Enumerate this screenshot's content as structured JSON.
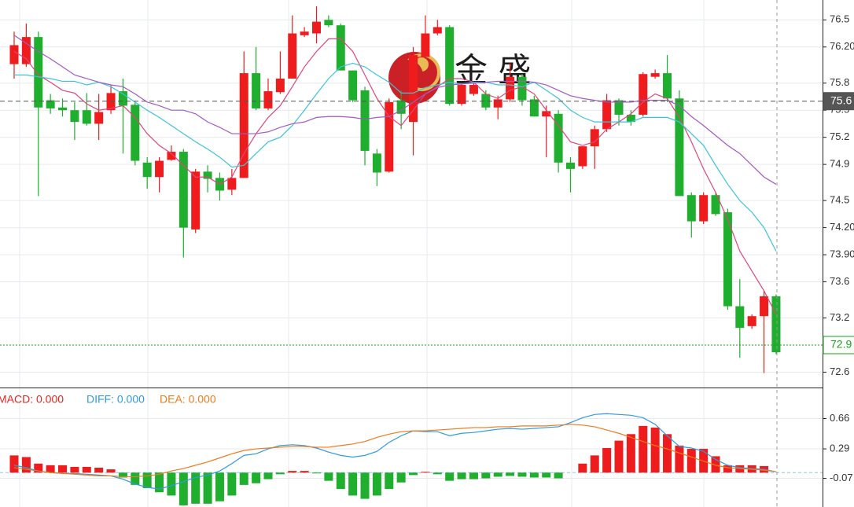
{
  "chart_data": [
    {
      "type": "candlestick",
      "logo": "金 盛",
      "up_color": "#ee1c1c",
      "down_color": "#1fae2d",
      "open": [
        76.01,
        76.01,
        76.31,
        75.61,
        75.53,
        75.5,
        75.5,
        75.35,
        75.5,
        75.71,
        75.56,
        74.92,
        74.76,
        74.95,
        75.04,
        74.18,
        74.82,
        74.75,
        74.62,
        74.75,
        75.91,
        75.52,
        75.7,
        75.85,
        76.33,
        76.35,
        76.5,
        76.44,
        75.94,
        75.72,
        75.02,
        74.82,
        75.61,
        75.37,
        76.09,
        76.35,
        76.42,
        75.57,
        75.68,
        75.68,
        75.53,
        75.62,
        75.87,
        75.62,
        75.43,
        75.46,
        74.92,
        74.88,
        75.1,
        75.29,
        75.61,
        75.45,
        75.45,
        75.87,
        75.91,
        75.63,
        74.56,
        74.27,
        74.56,
        74.37,
        73.33,
        73.11,
        73.22,
        73.44
      ],
      "high": [
        76.37,
        76.46,
        76.37,
        75.68,
        75.63,
        75.59,
        75.69,
        75.68,
        75.78,
        75.85,
        75.59,
        74.98,
        74.98,
        75.11,
        75.07,
        74.85,
        74.89,
        74.81,
        74.85,
        76.15,
        76.2,
        75.85,
        76.15,
        76.55,
        76.42,
        76.65,
        76.55,
        76.46,
        75.94,
        75.76,
        75.07,
        75.63,
        75.72,
        76.2,
        76.55,
        76.5,
        76.44,
        75.8,
        75.8,
        75.72,
        75.66,
        76.02,
        75.9,
        75.66,
        75.55,
        75.5,
        74.98,
        75.1,
        75.33,
        75.68,
        75.63,
        75.5,
        75.92,
        75.95,
        76.11,
        75.72,
        74.59,
        74.59,
        74.59,
        74.41,
        73.63,
        73.24,
        73.5,
        73.46
      ],
      "low": [
        75.85,
        75.98,
        74.55,
        75.46,
        75.43,
        75.17,
        75.33,
        75.17,
        75.46,
        75.02,
        74.89,
        74.63,
        74.59,
        74.94,
        73.87,
        74.14,
        74.59,
        74.5,
        74.56,
        74.75,
        75.5,
        75.5,
        75.68,
        75.85,
        76.31,
        76.24,
        76.42,
        75.94,
        75.59,
        74.89,
        74.66,
        74.81,
        75.29,
        75.0,
        76.07,
        76.33,
        75.55,
        75.55,
        75.66,
        75.5,
        75.4,
        75.59,
        75.55,
        75.43,
        74.98,
        74.81,
        74.59,
        74.85,
        74.85,
        75.26,
        75.33,
        75.33,
        75.43,
        75.85,
        75.59,
        74.55,
        74.09,
        74.24,
        74.33,
        73.29,
        72.76,
        73.08,
        72.59,
        72.8
      ],
      "close": [
        76.22,
        76.31,
        75.53,
        75.52,
        75.5,
        75.37,
        75.35,
        75.48,
        75.69,
        75.55,
        74.94,
        74.76,
        74.94,
        75.04,
        74.2,
        74.82,
        74.74,
        74.61,
        74.75,
        75.91,
        75.52,
        75.71,
        75.85,
        76.35,
        76.37,
        76.48,
        76.44,
        75.94,
        75.61,
        75.05,
        74.81,
        75.59,
        75.46,
        76.11,
        76.35,
        76.42,
        75.57,
        75.78,
        75.78,
        75.53,
        75.62,
        75.87,
        75.61,
        75.43,
        75.49,
        74.92,
        74.85,
        75.1,
        75.29,
        75.61,
        75.45,
        75.37,
        75.9,
        75.91,
        75.63,
        74.55,
        74.27,
        74.56,
        74.35,
        73.33,
        73.09,
        73.22,
        73.44,
        72.82
      ],
      "lines": [
        {
          "color": "#e0457b",
          "values": [
            76.15,
            76.07,
            75.89,
            75.81,
            75.72,
            75.69,
            75.57,
            75.5,
            75.52,
            75.55,
            75.42,
            75.24,
            75.11,
            75.02,
            74.89,
            74.76,
            74.76,
            74.68,
            74.76,
            75.02,
            75.24,
            75.42,
            75.55,
            75.76,
            75.98,
            76.15,
            76.29,
            76.29,
            76.15,
            75.89,
            75.63,
            75.43,
            75.33,
            75.5,
            75.68,
            75.76,
            75.85,
            75.85,
            75.81,
            75.68,
            75.63,
            75.72,
            75.76,
            75.68,
            75.5,
            75.33,
            75.15,
            75.11,
            75.15,
            75.29,
            75.37,
            75.46,
            75.59,
            75.68,
            75.63,
            75.42,
            75.15,
            74.85,
            74.59,
            74.29,
            73.94,
            73.72,
            73.5,
            73.24
          ]
        },
        {
          "color": "#3cc3d8",
          "values": [
            75.89,
            75.89,
            75.87,
            75.85,
            75.82,
            75.82,
            75.78,
            75.81,
            75.76,
            75.68,
            75.59,
            75.5,
            75.42,
            75.33,
            75.24,
            75.15,
            75.07,
            74.98,
            74.87,
            74.89,
            75.02,
            75.15,
            75.2,
            75.33,
            75.5,
            75.68,
            75.85,
            75.98,
            76.02,
            75.98,
            75.89,
            75.81,
            75.69,
            75.69,
            75.75,
            75.78,
            75.81,
            75.79,
            75.81,
            75.81,
            75.78,
            75.78,
            75.76,
            75.81,
            75.72,
            75.63,
            75.5,
            75.42,
            75.37,
            75.37,
            75.37,
            75.37,
            75.42,
            75.42,
            75.42,
            75.37,
            75.24,
            75.11,
            74.89,
            74.68,
            74.5,
            74.37,
            74.2,
            73.94
          ]
        },
        {
          "color": "#a259c4",
          "values": [
            76.33,
            76.24,
            76.15,
            76.07,
            75.98,
            75.89,
            75.85,
            75.81,
            75.78,
            75.76,
            75.68,
            75.59,
            75.55,
            75.5,
            75.5,
            75.46,
            75.37,
            75.31,
            75.24,
            75.24,
            75.24,
            75.26,
            75.31,
            75.35,
            75.37,
            75.42,
            75.43,
            75.43,
            75.42,
            75.4,
            75.42,
            75.43,
            75.5,
            75.59,
            75.68,
            75.75,
            75.78,
            75.79,
            75.8,
            75.81,
            75.82,
            75.82,
            75.82,
            75.81,
            75.78,
            75.72,
            75.66,
            75.63,
            75.61,
            75.59,
            75.59,
            75.59,
            75.61,
            75.61,
            75.61,
            75.55,
            75.43,
            75.33,
            75.22,
            75.11,
            75.02,
            74.89,
            74.76,
            74.68
          ]
        }
      ],
      "price_lines": [
        {
          "value": 75.6,
          "color": "#555555",
          "style": "dashed",
          "tag": "filled"
        },
        {
          "value": 72.9,
          "color": "#1aa31a",
          "style": "dotted",
          "tag": "outline"
        }
      ],
      "ylim": [
        72.43,
        76.72
      ],
      "yticks": [
        76.5,
        {
          "value": 76.2,
          "label": "76.20"
        },
        75.8,
        75.5,
        75.2,
        74.9,
        74.5,
        {
          "value": 74.2,
          "label": "74.20"
        },
        {
          "value": 73.9,
          "label": "73.90"
        },
        73.6,
        73.2,
        72.6
      ],
      "grid": true
    },
    {
      "type": "macd",
      "legend": [
        {
          "text": "MACD: 0.000",
          "color": "#e8231c"
        },
        {
          "text": "DIFF: 0.000",
          "color": "#2f9be0"
        },
        {
          "text": "DEA: 0.000",
          "color": "#f07a1e"
        }
      ],
      "up_color": "#ee1c1c",
      "down_color": "#1fae2d",
      "histogram": [
        0.21,
        0.19,
        0.11,
        0.09,
        0.09,
        0.07,
        0.07,
        0.06,
        0.04,
        -0.06,
        -0.15,
        -0.19,
        -0.24,
        -0.28,
        -0.4,
        -0.38,
        -0.38,
        -0.35,
        -0.28,
        -0.15,
        -0.13,
        -0.08,
        -0.02,
        0.02,
        0.02,
        -0.01,
        -0.1,
        -0.2,
        -0.28,
        -0.32,
        -0.28,
        -0.2,
        -0.12,
        -0.03,
        0.01,
        -0.02,
        -0.1,
        -0.08,
        -0.08,
        -0.07,
        -0.05,
        -0.04,
        -0.05,
        -0.06,
        -0.06,
        -0.07,
        0.0,
        0.11,
        0.21,
        0.3,
        0.39,
        0.47,
        0.57,
        0.55,
        0.47,
        0.33,
        0.29,
        0.29,
        0.2,
        0.09,
        0.09,
        0.09,
        0.08,
        0.0
      ],
      "lines": [
        {
          "color": "#2f9be0",
          "values": [
            0.09,
            0.06,
            0.02,
            0.0,
            -0.01,
            -0.01,
            -0.02,
            -0.03,
            -0.04,
            -0.08,
            -0.14,
            -0.18,
            -0.2,
            -0.16,
            -0.11,
            -0.06,
            -0.03,
            0.02,
            0.11,
            0.21,
            0.23,
            0.29,
            0.33,
            0.34,
            0.33,
            0.3,
            0.25,
            0.21,
            0.19,
            0.21,
            0.26,
            0.37,
            0.45,
            0.51,
            0.5,
            0.5,
            0.45,
            0.48,
            0.49,
            0.51,
            0.53,
            0.54,
            0.53,
            0.54,
            0.55,
            0.56,
            0.61,
            0.67,
            0.71,
            0.72,
            0.71,
            0.7,
            0.67,
            0.59,
            0.45,
            0.32,
            0.3,
            0.26,
            0.16,
            0.09,
            0.06,
            0.05,
            0.04,
            0.01
          ]
        },
        {
          "color": "#f07a1e",
          "values": [
            0.06,
            0.04,
            0.02,
            0.0,
            -0.01,
            -0.02,
            -0.03,
            -0.04,
            -0.04,
            -0.05,
            -0.05,
            -0.04,
            -0.02,
            0.02,
            0.05,
            0.09,
            0.13,
            0.18,
            0.23,
            0.27,
            0.29,
            0.3,
            0.31,
            0.32,
            0.32,
            0.31,
            0.31,
            0.33,
            0.35,
            0.38,
            0.43,
            0.47,
            0.5,
            0.51,
            0.51,
            0.52,
            0.53,
            0.54,
            0.55,
            0.55,
            0.56,
            0.56,
            0.57,
            0.57,
            0.57,
            0.58,
            0.59,
            0.58,
            0.56,
            0.52,
            0.48,
            0.43,
            0.38,
            0.33,
            0.29,
            0.24,
            0.19,
            0.14,
            0.09,
            0.06,
            0.05,
            0.04,
            0.03,
            0.01
          ]
        }
      ],
      "ylim": [
        -0.42,
        1.02
      ],
      "yticks": [
        0.66,
        0.29,
        -0.07
      ],
      "grid": true
    }
  ]
}
